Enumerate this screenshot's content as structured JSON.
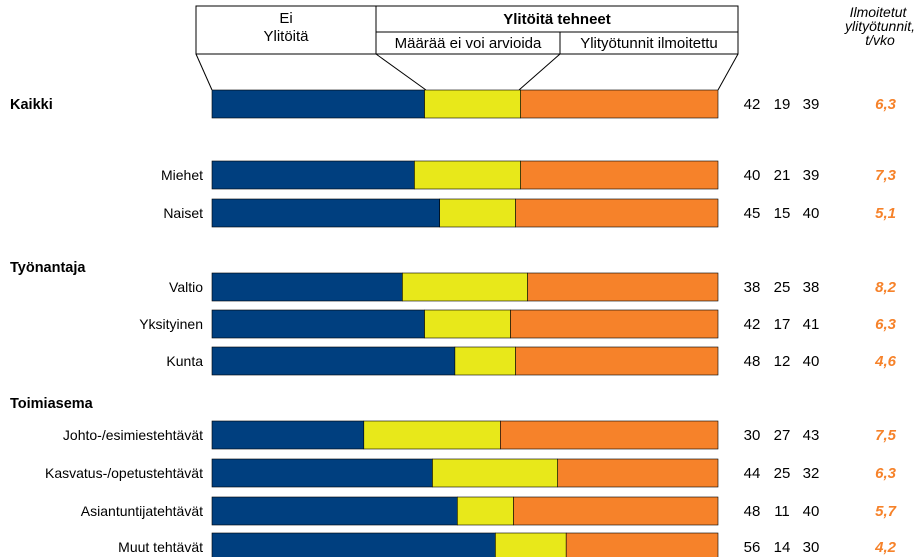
{
  "colors": {
    "no_overtime": "#003f7f",
    "cannot_estimate": "#e8e81a",
    "reported": "#f6822a",
    "hours_text": "#f6822a"
  },
  "legend": {
    "no_overtime_line1": "Ei",
    "no_overtime_line2": "Ylitöitä",
    "did_overtime": "Ylitöitä tehneet",
    "cannot_estimate": "Määrää ei voi arvioida",
    "reported": "Ylityötunnit ilmoitettu"
  },
  "right_header": [
    "Ilmoitetut",
    "ylityötunnit,",
    "t/vko"
  ],
  "chart_data": {
    "type": "bar",
    "stacked": true,
    "orientation": "horizontal",
    "groups": [
      "Kaikki",
      "Työnantaja",
      "Toimiasema"
    ],
    "series": [
      {
        "name": "Ei Ylitöitä",
        "color": "#003f7f"
      },
      {
        "name": "Määrää ei voi arvioida",
        "color": "#e8e81a"
      },
      {
        "name": "Ylityötunnit ilmoitettu",
        "color": "#f6822a"
      }
    ],
    "rows": [
      {
        "label": "Kaikki",
        "bold": true,
        "values": [
          42,
          19,
          39
        ],
        "hours": "6,3"
      },
      {
        "label": "Miehet",
        "bold": false,
        "values": [
          40,
          21,
          39
        ],
        "hours": "7,3"
      },
      {
        "label": "Naiset",
        "bold": false,
        "values": [
          45,
          15,
          40
        ],
        "hours": "5,1"
      },
      {
        "label": "Valtio",
        "bold": false,
        "values": [
          38,
          25,
          38
        ],
        "hours": "8,2"
      },
      {
        "label": "Yksityinen",
        "bold": false,
        "values": [
          42,
          17,
          41
        ],
        "hours": "6,3"
      },
      {
        "label": "Kunta",
        "bold": false,
        "values": [
          48,
          12,
          40
        ],
        "hours": "4,6"
      },
      {
        "label": "Johto-/esimiestehtävät",
        "bold": false,
        "values": [
          30,
          27,
          43
        ],
        "hours": "7,5"
      },
      {
        "label": "Kasvatus-/opetustehtävät",
        "bold": false,
        "values": [
          44,
          25,
          32
        ],
        "hours": "6,3"
      },
      {
        "label": "Asiantuntijatehtävät",
        "bold": false,
        "values": [
          48,
          11,
          40
        ],
        "hours": "5,7"
      },
      {
        "label": "Muut tehtävät",
        "bold": false,
        "values": [
          56,
          14,
          30
        ],
        "hours": "4,2"
      }
    ]
  }
}
